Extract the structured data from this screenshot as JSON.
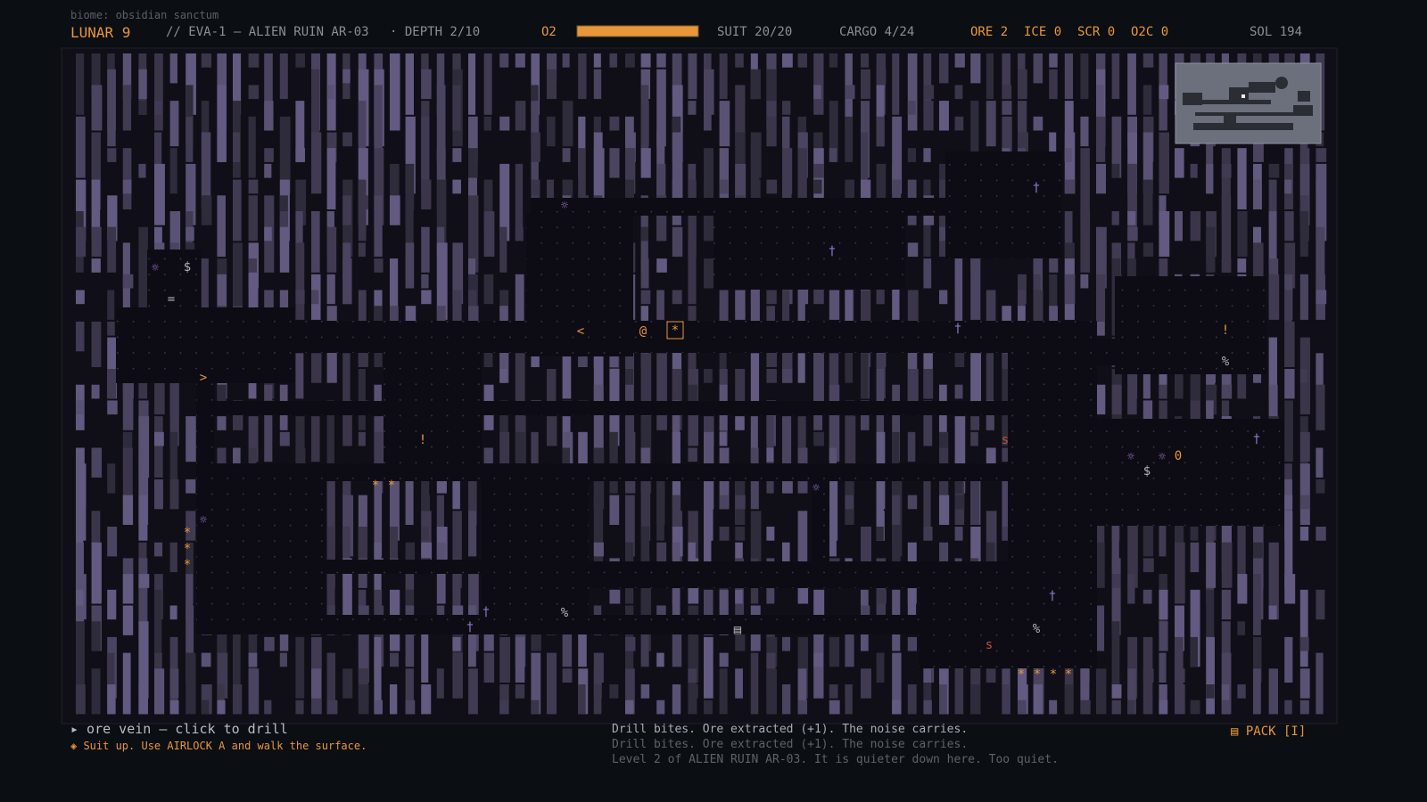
{
  "header": {
    "biome": "biome: obsidian sanctum",
    "title": "LUNAR 9",
    "mission": "// EVA-1 — ALIEN RUIN AR-03",
    "depth": "· DEPTH 2/10",
    "o2_label": "O2",
    "suit": "SUIT 20/20",
    "cargo": "CARGO 4/24",
    "ore": "ORE 2",
    "ice": "ICE 0",
    "scr": "SCR 0",
    "o2c": "O2C 0",
    "sol": "SOL 194"
  },
  "map": {
    "glyphs": [
      "☼",
      "☼",
      "$",
      "=",
      "<",
      "@",
      "*",
      "†",
      "†",
      "†",
      "!",
      "%",
      ">",
      "!",
      "s",
      "☼",
      "☼",
      "0",
      "†",
      "$",
      "*",
      "*",
      "☼",
      "☼",
      "*",
      "*",
      "*",
      "†",
      "%",
      "†",
      "▤",
      "†",
      "%",
      "s",
      "*",
      "*",
      "*",
      "*"
    ]
  },
  "footer": {
    "hint": "▸ ore vein — click to drill",
    "objective": "◈ Suit up. Use AIRLOCK A and walk the surface.",
    "log": [
      "Drill bites. Ore extracted (+1). The noise carries.",
      "Drill bites. Ore extracted (+1). The noise carries.",
      "Level 2 of ALIEN RUIN AR-03. It is quieter down here. Too quiet."
    ],
    "pack": "▤ PACK [I]"
  }
}
